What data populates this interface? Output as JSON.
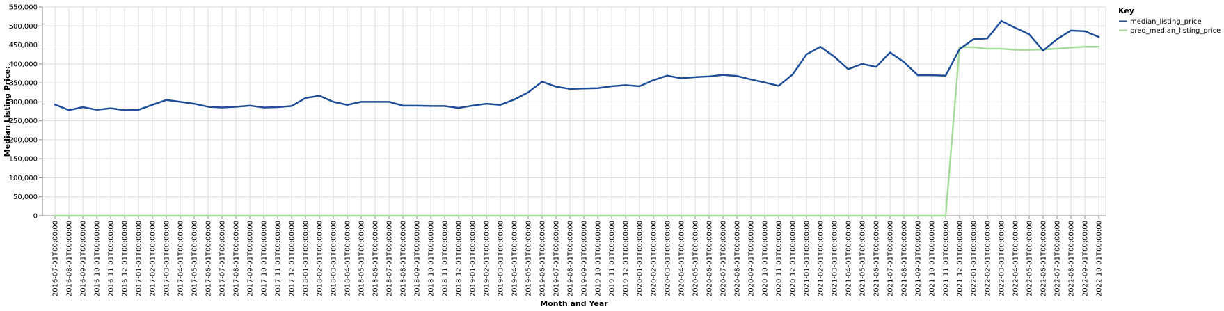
{
  "chart_data": {
    "type": "line",
    "x": [
      "2016-07-01T00:00:00",
      "2016-08-01T00:00:00",
      "2016-09-01T00:00:00",
      "2016-10-01T00:00:00",
      "2016-11-01T00:00:00",
      "2016-12-01T00:00:00",
      "2017-01-01T00:00:00",
      "2017-02-01T00:00:00",
      "2017-03-01T00:00:00",
      "2017-04-01T00:00:00",
      "2017-05-01T00:00:00",
      "2017-06-01T00:00:00",
      "2017-07-01T00:00:00",
      "2017-08-01T00:00:00",
      "2017-09-01T00:00:00",
      "2017-10-01T00:00:00",
      "2017-11-01T00:00:00",
      "2017-12-01T00:00:00",
      "2018-01-01T00:00:00",
      "2018-02-01T00:00:00",
      "2018-03-01T00:00:00",
      "2018-04-01T00:00:00",
      "2018-05-01T00:00:00",
      "2018-06-01T00:00:00",
      "2018-07-01T00:00:00",
      "2018-08-01T00:00:00",
      "2018-09-01T00:00:00",
      "2018-10-01T00:00:00",
      "2018-11-01T00:00:00",
      "2018-12-01T00:00:00",
      "2019-01-01T00:00:00",
      "2019-02-01T00:00:00",
      "2019-03-01T00:00:00",
      "2019-04-01T00:00:00",
      "2019-05-01T00:00:00",
      "2019-06-01T00:00:00",
      "2019-07-01T00:00:00",
      "2019-08-01T00:00:00",
      "2019-09-01T00:00:00",
      "2019-10-01T00:00:00",
      "2019-11-01T00:00:00",
      "2019-12-01T00:00:00",
      "2020-01-01T00:00:00",
      "2020-02-01T00:00:00",
      "2020-03-01T00:00:00",
      "2020-04-01T00:00:00",
      "2020-05-01T00:00:00",
      "2020-06-01T00:00:00",
      "2020-07-01T00:00:00",
      "2020-08-01T00:00:00",
      "2020-09-01T00:00:00",
      "2020-10-01T00:00:00",
      "2020-11-01T00:00:00",
      "2020-12-01T00:00:00",
      "2021-01-01T00:00:00",
      "2021-02-01T00:00:00",
      "2021-03-01T00:00:00",
      "2021-04-01T00:00:00",
      "2021-05-01T00:00:00",
      "2021-06-01T00:00:00",
      "2021-07-01T00:00:00",
      "2021-08-01T00:00:00",
      "2021-09-01T00:00:00",
      "2021-10-01T00:00:00",
      "2021-11-01T00:00:00",
      "2021-12-01T00:00:00",
      "2022-01-01T00:00:00",
      "2022-02-01T00:00:00",
      "2022-03-01T00:00:00",
      "2022-04-01T00:00:00",
      "2022-05-01T00:00:00",
      "2022-06-01T00:00:00",
      "2022-07-01T00:00:00",
      "2022-08-01T00:00:00",
      "2022-09-01T00:00:00",
      "2022-10-01T00:00:00"
    ],
    "series": [
      {
        "name": "median_listing_price",
        "color": "#1f4e99",
        "values": [
          293000,
          278000,
          286000,
          279000,
          283000,
          278000,
          279000,
          292000,
          305000,
          300000,
          295000,
          287000,
          285000,
          287000,
          290000,
          285000,
          286000,
          289000,
          310000,
          316000,
          300000,
          292000,
          300000,
          300000,
          300000,
          290000,
          290000,
          289000,
          289000,
          284000,
          290000,
          295000,
          292000,
          306000,
          325000,
          353000,
          340000,
          334000,
          335000,
          336000,
          341000,
          344000,
          341000,
          357000,
          369000,
          362000,
          365000,
          367000,
          371000,
          368000,
          359000,
          351000,
          342000,
          372000,
          425000,
          445000,
          419000,
          386000,
          400000,
          392000,
          430000,
          405000,
          370000,
          370000,
          369000,
          439000,
          465000,
          467000,
          513000,
          495000,
          478000,
          435000,
          465000,
          488000,
          486000,
          471000
        ]
      },
      {
        "name": "pred_median_listing_price",
        "color": "#a6dc9b",
        "values": [
          0,
          0,
          0,
          0,
          0,
          0,
          0,
          0,
          0,
          0,
          0,
          0,
          0,
          0,
          0,
          0,
          0,
          0,
          0,
          0,
          0,
          0,
          0,
          0,
          0,
          0,
          0,
          0,
          0,
          0,
          0,
          0,
          0,
          0,
          0,
          0,
          0,
          0,
          0,
          0,
          0,
          0,
          0,
          0,
          0,
          0,
          0,
          0,
          0,
          0,
          0,
          0,
          0,
          0,
          0,
          0,
          0,
          0,
          0,
          0,
          0,
          0,
          0,
          0,
          0,
          444000,
          444000,
          440000,
          440000,
          437000,
          437000,
          438000,
          440000,
          443000,
          445000,
          445000
        ]
      }
    ],
    "y_ticks": [
      "0",
      "50,000",
      "100,000",
      "150,000",
      "200,000",
      "250,000",
      "300,000",
      "350,000",
      "400,000",
      "450,000",
      "500,000",
      "550,000"
    ],
    "ylim": [
      0,
      550000
    ],
    "xlabel": "Month and Year",
    "ylabel": "Median Listing Price:",
    "grid": true,
    "legend": {
      "title": "Key",
      "placement": "top-right"
    }
  }
}
